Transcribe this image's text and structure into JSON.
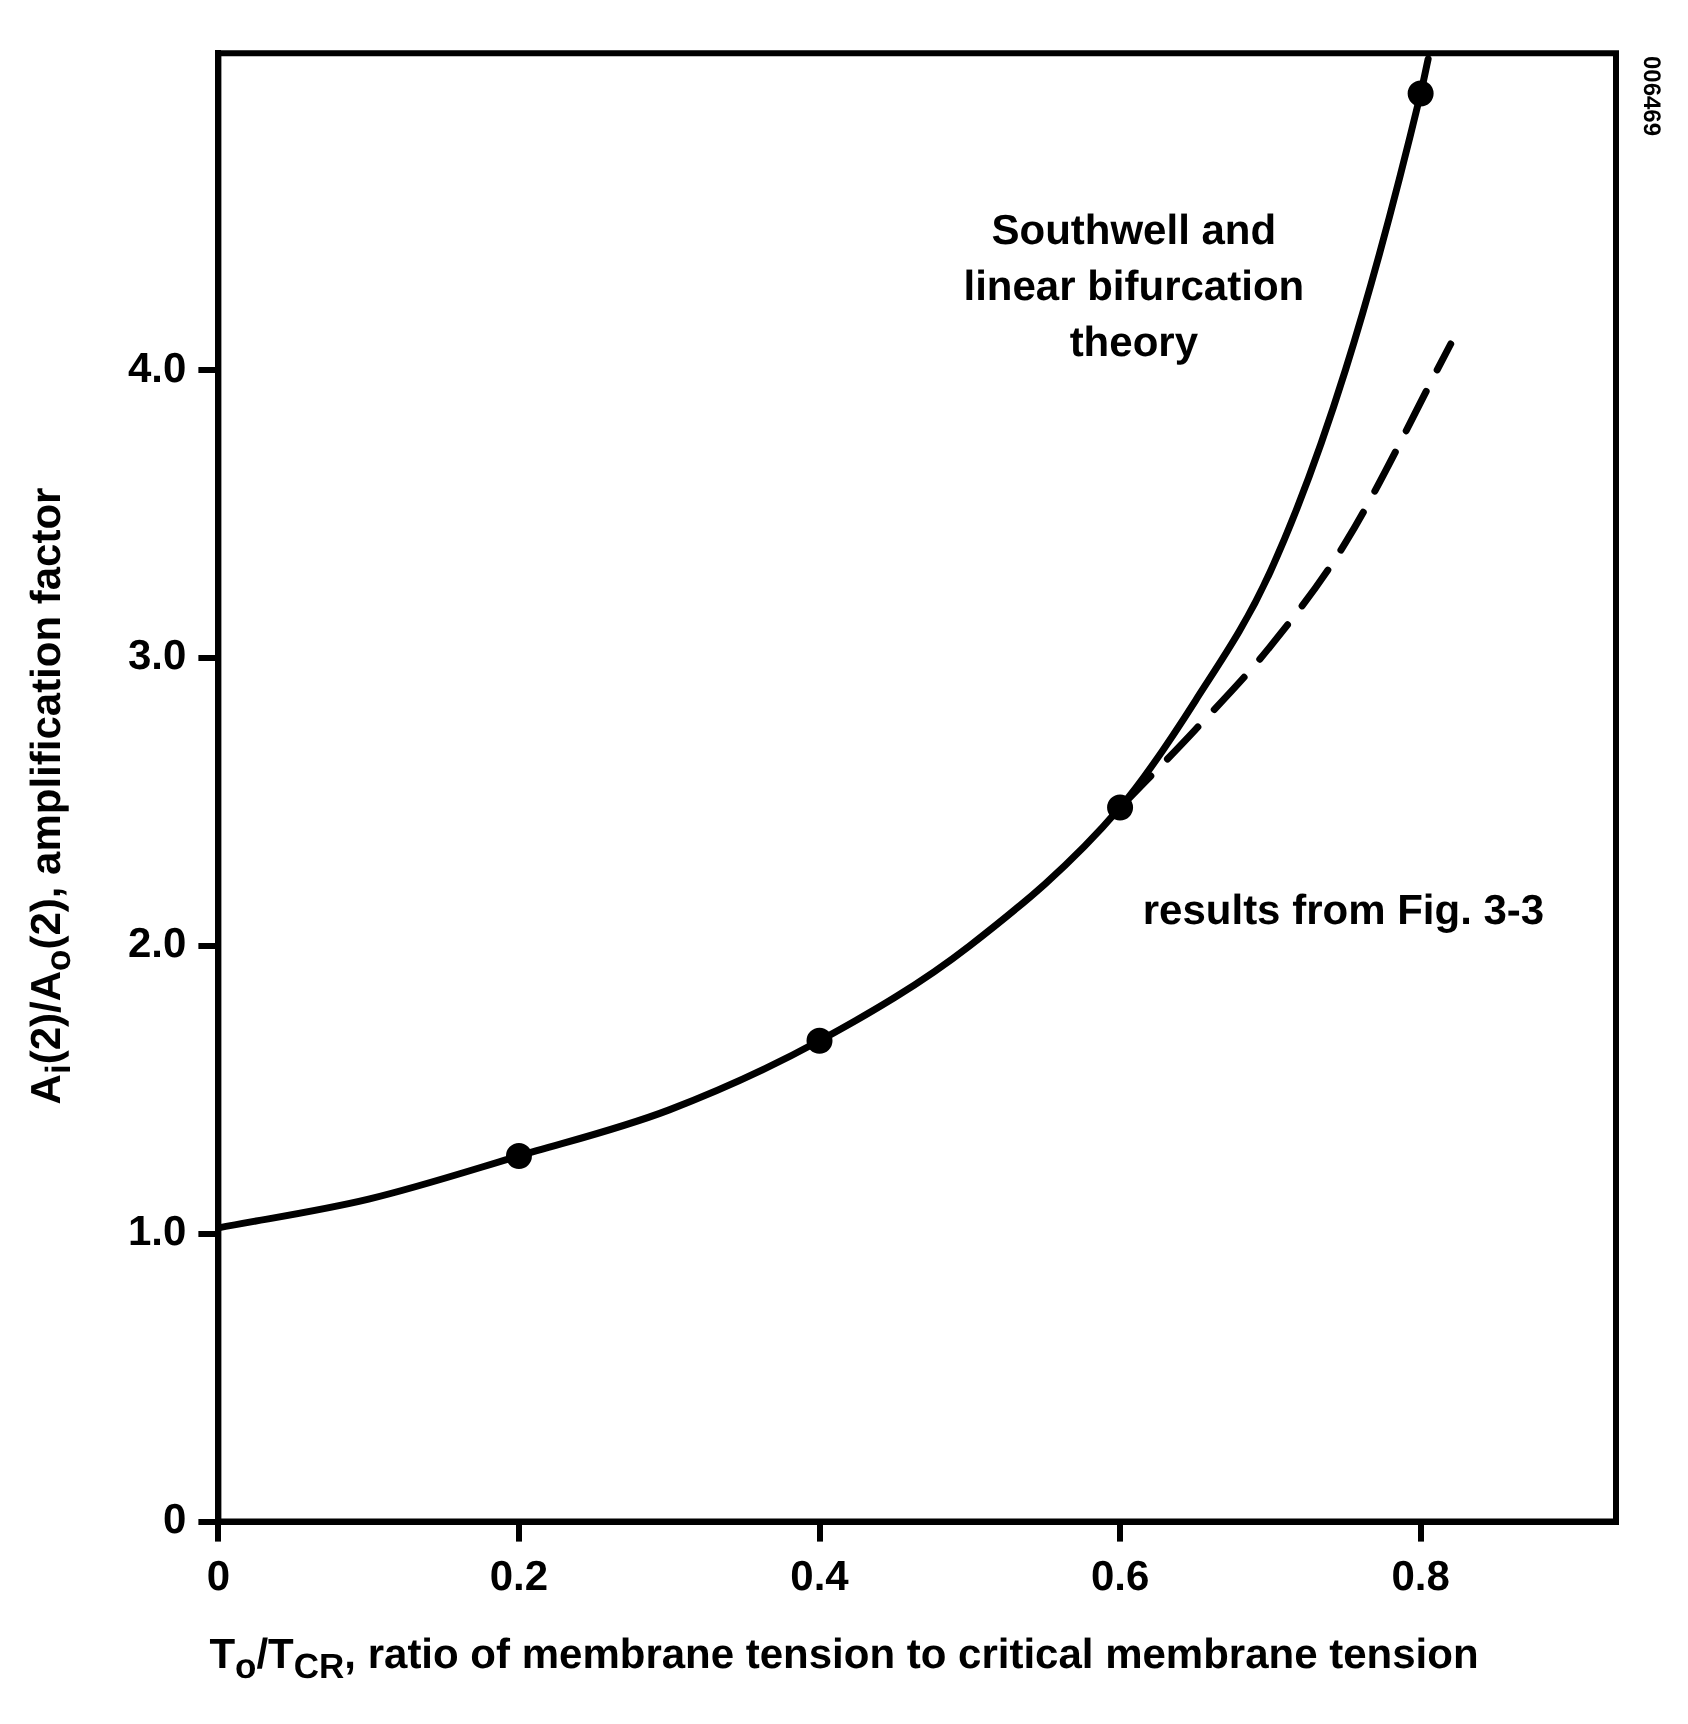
{
  "chart_data": {
    "type": "line",
    "xlabel": "T$_{o}$/T$_{CR}$, ratio of membrane tension to critical membrane tension",
    "ylabel": "A$_{i}$(2)/A$_{o}$(2), amplification factor",
    "series": [
      {
        "type": "line",
        "color": "#000000",
        "marker": "none",
        "line_style": "solid",
        "x": [
          0,
          0.1,
          0.2,
          0.3,
          0.4,
          0.5,
          0.6,
          0.65,
          0.7,
          0.75,
          0.8,
          0.805
        ],
        "values": [
          1.02,
          1.12,
          1.27,
          1.43,
          1.67,
          2.0,
          2.48,
          2.85,
          3.3,
          4.0,
          4.96,
          5.08
        ]
      },
      {
        "type": "line",
        "color": "#000000",
        "marker": "none",
        "line_style": "dashed",
        "x": [
          0.6,
          0.65,
          0.7,
          0.75,
          0.82
        ],
        "values": [
          2.48,
          2.75,
          3.04,
          3.4,
          4.09
        ]
      },
      {
        "type": "scatter",
        "color": "#000000",
        "marker": "circle",
        "x": [
          0.2,
          0.4,
          0.6,
          0.8
        ],
        "values": [
          1.27,
          1.67,
          2.48,
          4.96
        ]
      }
    ],
    "xlim": [
      0,
      0.93
    ],
    "ylim": [
      0,
      5.1
    ],
    "xticks": [
      0,
      0.2,
      0.4,
      0.6,
      0.8
    ],
    "yticks": [
      0,
      {
        "value": 1,
        "label": "1.0"
      },
      {
        "value": 2,
        "label": "2.0"
      },
      {
        "value": 3,
        "label": "3.0"
      },
      {
        "value": 4,
        "label": "4.0"
      }
    ],
    "grid": false,
    "legend": false,
    "annotations": [
      "Southwell and\nlinear bifurcation\ntheory",
      "results from Fig. 3-3",
      "006469"
    ]
  }
}
